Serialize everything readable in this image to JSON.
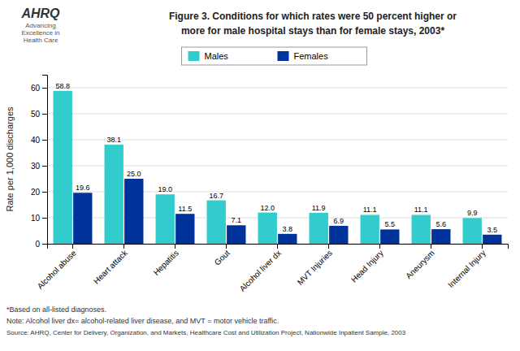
{
  "chart_data": {
    "type": "bar",
    "title": "Figure 3. Conditions for which rates were 50 percent higher or",
    "subtitle": "more for male hospital stays than for female stays, 2003*",
    "categories": [
      "Alcohol abuse",
      "Heart attack",
      "Hepatitis",
      "Gout",
      "Alcohol liver dx",
      "MVT Injuries",
      "Head Injury",
      "Aneurysm",
      "Internal Injury"
    ],
    "series": [
      {
        "name": "Males",
        "color": "#33CCCC",
        "values": [
          58.8,
          38.1,
          19.0,
          16.7,
          12.0,
          11.9,
          11.1,
          11.1,
          9.9
        ],
        "value_labels": [
          "58.8",
          "38.1",
          "19.0",
          "16.7",
          "12.0",
          "11.9",
          "11.1",
          "11.1",
          "9.9"
        ]
      },
      {
        "name": "Females",
        "color": "#003399",
        "values": [
          19.6,
          25.0,
          11.5,
          7.1,
          3.8,
          6.9,
          5.5,
          5.6,
          3.5
        ],
        "value_labels": [
          "19.6",
          "25.0",
          "11.5",
          "7.1",
          "3.8",
          "6.9",
          "5.5",
          "5.6",
          "3.5"
        ]
      }
    ],
    "ylabel": "Rate per 1,000 discharges",
    "ylim": [
      0,
      65
    ],
    "yticks": [
      0,
      10,
      20,
      30,
      40,
      50,
      60
    ],
    "grid": true,
    "legend": "top",
    "data_labels": true,
    "annotations": [
      "AHRQ",
      "Advancing\nExcellence in\nHealth Care",
      "*Based on all-listed diagnoses.",
      "Note: Alcohol liver dx= alcohol-related liver disease, and MVT = motor vehicle traffic.",
      "Source: AHRQ, Center for Delivery, Organization, and Markets, Healthcare Cost and Utilization Project, Nationwide Inpatient Sample, 2003"
    ]
  }
}
